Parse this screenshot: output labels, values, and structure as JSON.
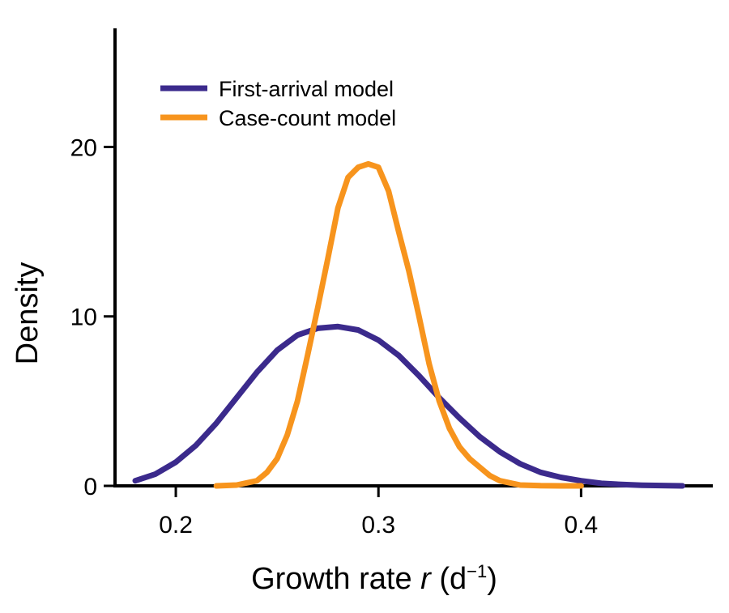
{
  "chart_data": {
    "type": "line",
    "xlabel": "Growth rate",
    "xlabel_var": "r",
    "xlabel_unit_open": " (d",
    "xlabel_unit_exp": "−1",
    "xlabel_unit_close": ")",
    "ylabel": "Density",
    "xlim": [
      0.17,
      0.465
    ],
    "ylim": [
      0,
      27
    ],
    "xticks": [
      0.2,
      0.3,
      0.4
    ],
    "xtick_labels": [
      "0.2",
      "0.3",
      "0.4"
    ],
    "yticks": [
      0,
      10,
      20
    ],
    "ytick_labels": [
      "0",
      "10",
      "20"
    ],
    "grid": false,
    "legend_position": "top-left",
    "series": [
      {
        "name": "First-arrival model",
        "color": "#3b2a8c",
        "x": [
          0.18,
          0.19,
          0.2,
          0.21,
          0.22,
          0.23,
          0.24,
          0.25,
          0.26,
          0.27,
          0.28,
          0.29,
          0.3,
          0.31,
          0.32,
          0.33,
          0.34,
          0.35,
          0.36,
          0.37,
          0.38,
          0.39,
          0.4,
          0.41,
          0.42,
          0.43,
          0.44,
          0.45
        ],
        "y": [
          0.3,
          0.7,
          1.4,
          2.4,
          3.7,
          5.2,
          6.7,
          8.0,
          8.9,
          9.3,
          9.4,
          9.2,
          8.6,
          7.7,
          6.5,
          5.2,
          4.0,
          2.9,
          2.0,
          1.3,
          0.8,
          0.5,
          0.3,
          0.15,
          0.08,
          0.04,
          0.02,
          0.0
        ]
      },
      {
        "name": "Case-count model",
        "color": "#f7941d",
        "x": [
          0.22,
          0.23,
          0.24,
          0.245,
          0.25,
          0.255,
          0.26,
          0.265,
          0.27,
          0.275,
          0.28,
          0.285,
          0.29,
          0.295,
          0.3,
          0.305,
          0.31,
          0.315,
          0.32,
          0.325,
          0.33,
          0.335,
          0.34,
          0.345,
          0.35,
          0.355,
          0.36,
          0.37,
          0.38,
          0.39,
          0.4
        ],
        "y": [
          0.0,
          0.05,
          0.3,
          0.8,
          1.6,
          3.0,
          5.0,
          7.7,
          10.5,
          13.4,
          16.4,
          18.2,
          18.8,
          19.0,
          18.8,
          17.4,
          15.0,
          12.7,
          10.0,
          7.2,
          5.0,
          3.4,
          2.3,
          1.6,
          1.1,
          0.6,
          0.3,
          0.05,
          0.01,
          0.0,
          0.0
        ]
      }
    ]
  }
}
